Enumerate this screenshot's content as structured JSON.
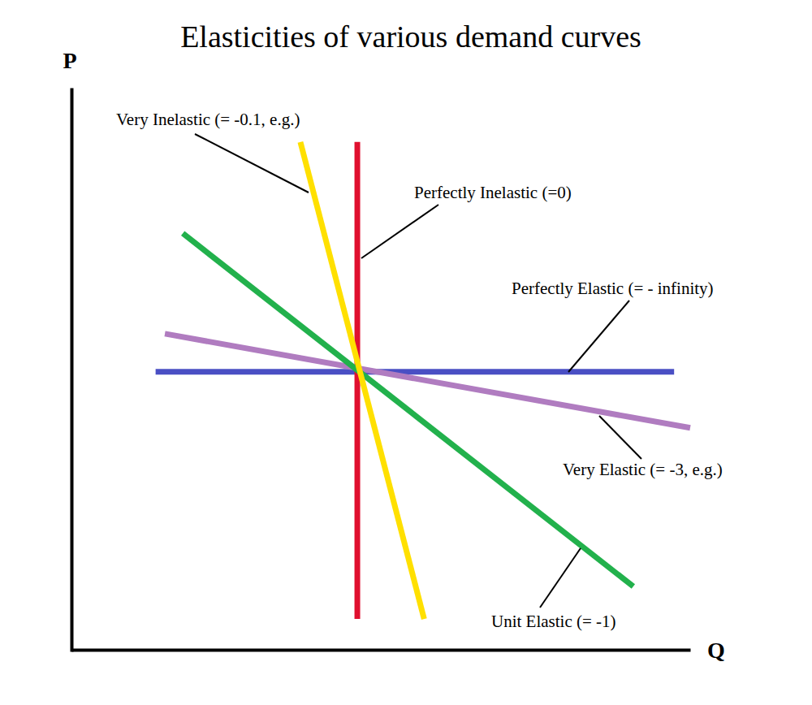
{
  "chart_data": {
    "type": "line",
    "title": "Elasticities of various demand curves",
    "x_label": "Q",
    "y_label": "P",
    "xlim": [
      0,
      10
    ],
    "ylim": [
      0,
      10
    ],
    "tick_labels": false,
    "grid": false,
    "series": [
      {
        "name": "Perfectly Elastic (= - infinity)",
        "color": "#4a4fc4",
        "x": [
          1.36,
          9.74
        ],
        "values": [
          4.96,
          4.96
        ]
      },
      {
        "name": "Very Elastic (= -3, e.g.)",
        "color": "#b07cc0",
        "x": [
          1.51,
          10.0
        ],
        "values": [
          5.64,
          3.96
        ]
      },
      {
        "name": "Perfectly Inelastic (=0)",
        "color": "#e0102f",
        "x": [
          4.62,
          4.62
        ],
        "values": [
          9.06,
          0.55
        ]
      },
      {
        "name": "Unit Elastic (= -1)",
        "color": "#22b14c",
        "x": [
          1.8,
          9.08
        ],
        "values": [
          7.43,
          1.13
        ]
      },
      {
        "name": "Very Inelastic (= -0.1, e.g.)",
        "color": "#ffe000",
        "x": [
          3.7,
          5.7
        ],
        "values": [
          9.06,
          0.55
        ]
      }
    ]
  }
}
